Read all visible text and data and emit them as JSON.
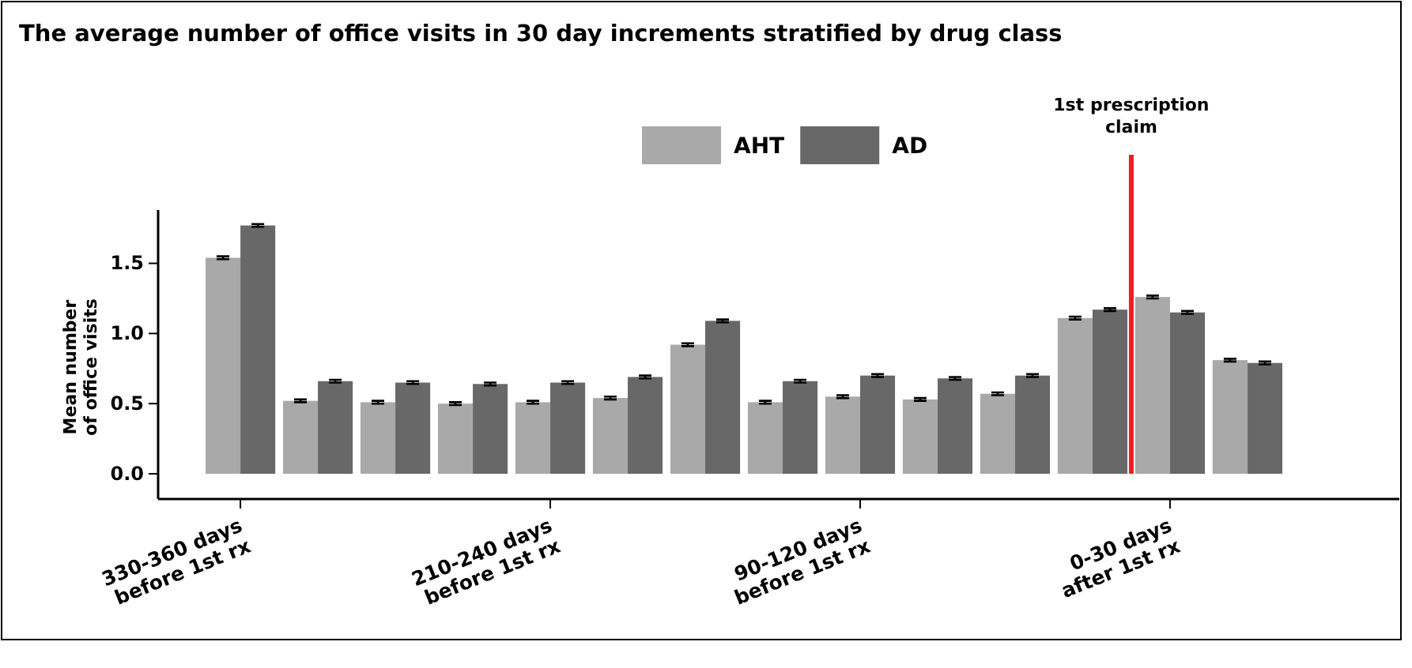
{
  "chart_data": {
    "type": "bar",
    "title": "The average number of office visits in 30 day increments stratified by drug class",
    "ylabel": "Mean number\nof office visits",
    "categories": [
      "330-360 days\nbefore 1st rx",
      null,
      null,
      null,
      "210-240 days\nbefore 1st rx",
      null,
      null,
      null,
      "90-120 days\nbefore 1st rx",
      null,
      null,
      null,
      "0-30 days\nafter 1st rx",
      null
    ],
    "series": [
      {
        "name": "AHT",
        "color": "#a9a9a9",
        "values": [
          1.54,
          0.52,
          0.51,
          0.5,
          0.51,
          0.54,
          0.92,
          0.51,
          0.55,
          0.53,
          0.57,
          1.11,
          1.26,
          0.81
        ],
        "errors": [
          0.01,
          0.01,
          0.01,
          0.01,
          0.01,
          0.01,
          0.01,
          0.01,
          0.01,
          0.01,
          0.01,
          0.01,
          0.01,
          0.01
        ]
      },
      {
        "name": "AD",
        "color": "#686868",
        "values": [
          1.77,
          0.66,
          0.65,
          0.64,
          0.65,
          0.69,
          1.09,
          0.66,
          0.7,
          0.68,
          0.7,
          1.17,
          1.15,
          0.79
        ],
        "errors": [
          0.01,
          0.01,
          0.01,
          0.01,
          0.01,
          0.01,
          0.01,
          0.01,
          0.01,
          0.01,
          0.01,
          0.01,
          0.01,
          0.01
        ]
      }
    ],
    "ylim": [
      -0.18,
      1.88
    ],
    "yticks": [
      {
        "value": 0,
        "label": "0.0"
      },
      0.5,
      {
        "value": 1,
        "label": "1.0"
      },
      1.5
    ],
    "annotations": [
      "1st prescription claim"
    ],
    "legend": "top",
    "grid": false
  }
}
